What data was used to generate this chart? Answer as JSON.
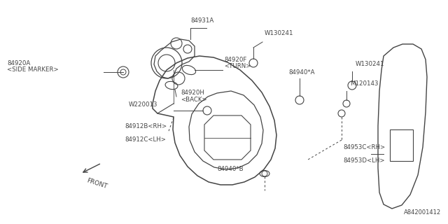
{
  "bg_color": "#ffffff",
  "line_color": "#444444",
  "text_color": "#444444",
  "diagram_id": "A842001412",
  "figsize": [
    6.4,
    3.2
  ],
  "dpi": 100,
  "xlim": [
    0,
    640
  ],
  "ylim": [
    0,
    320
  ]
}
